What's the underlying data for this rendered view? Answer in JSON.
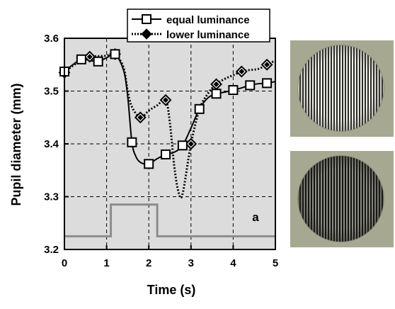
{
  "chart_data": {
    "type": "line",
    "ylabel": "Pupil diameter (mm)",
    "xlabel": "Time (s)",
    "panel_label": "a",
    "xlim": [
      0,
      5
    ],
    "ylim": [
      3.2,
      3.6
    ],
    "xticks": [
      "0",
      "1",
      "2",
      "3",
      "4",
      "5"
    ],
    "yticks": [
      "3.2",
      "3.3",
      "3.4",
      "3.5",
      "3.6"
    ],
    "grid": true,
    "legend_position": "top",
    "series": [
      {
        "name": "equal luminance",
        "marker": "square",
        "line": "solid",
        "x": [
          0.0,
          0.2,
          0.4,
          0.6,
          0.8,
          1.0,
          1.2,
          1.4,
          1.5,
          1.6,
          1.7,
          1.8,
          1.9,
          2.0,
          2.2,
          2.4,
          2.6,
          2.8,
          3.0,
          3.2,
          3.4,
          3.6,
          3.8,
          4.0,
          4.2,
          4.4,
          4.6,
          4.8,
          5.0
        ],
        "y": [
          3.537,
          3.55,
          3.56,
          3.558,
          3.556,
          3.563,
          3.57,
          3.54,
          3.49,
          3.403,
          3.375,
          3.365,
          3.362,
          3.362,
          3.372,
          3.38,
          3.384,
          3.397,
          3.43,
          3.466,
          3.487,
          3.495,
          3.498,
          3.502,
          3.506,
          3.511,
          3.514,
          3.515,
          3.518
        ],
        "markers_x": [
          0.0,
          0.4,
          0.8,
          1.2,
          1.6,
          2.0,
          2.4,
          2.8,
          3.2,
          3.6,
          4.0,
          4.4,
          4.8
        ],
        "markers_y": [
          3.537,
          3.56,
          3.556,
          3.57,
          3.403,
          3.362,
          3.38,
          3.397,
          3.466,
          3.495,
          3.502,
          3.511,
          3.515
        ]
      },
      {
        "name": "lower luminance",
        "marker": "diamond",
        "line": "dotted",
        "x": [
          0.0,
          0.2,
          0.4,
          0.6,
          0.8,
          1.0,
          1.2,
          1.4,
          1.5,
          1.6,
          1.8,
          2.0,
          2.2,
          2.4,
          2.5,
          2.6,
          2.7,
          2.8,
          3.0,
          3.2,
          3.4,
          3.6,
          3.8,
          4.0,
          4.2,
          4.4,
          4.6,
          4.8,
          5.0
        ],
        "y": [
          3.535,
          3.548,
          3.558,
          3.565,
          3.566,
          3.567,
          3.57,
          3.545,
          3.5,
          3.47,
          3.45,
          3.463,
          3.473,
          3.483,
          3.44,
          3.36,
          3.31,
          3.305,
          3.4,
          3.465,
          3.495,
          3.513,
          3.523,
          3.53,
          3.537,
          3.54,
          3.542,
          3.55,
          3.558
        ],
        "markers_x": [
          0.0,
          0.6,
          1.2,
          1.8,
          2.4,
          3.0,
          3.6,
          4.2,
          4.8
        ],
        "markers_y": [
          3.535,
          3.565,
          3.57,
          3.45,
          3.483,
          3.4,
          3.513,
          3.537,
          3.55
        ]
      },
      {
        "name": "",
        "role": "stimulus timing trace",
        "line": "solid",
        "x": [
          0.0,
          1.1,
          1.1,
          2.2,
          2.2,
          5.0
        ],
        "y": [
          3.225,
          3.225,
          3.285,
          3.285,
          3.225,
          3.225
        ]
      }
    ]
  },
  "stimulus_images": [
    {
      "description_icon": "grating-disc-light"
    },
    {
      "description_icon": "grating-disc-dark"
    }
  ]
}
